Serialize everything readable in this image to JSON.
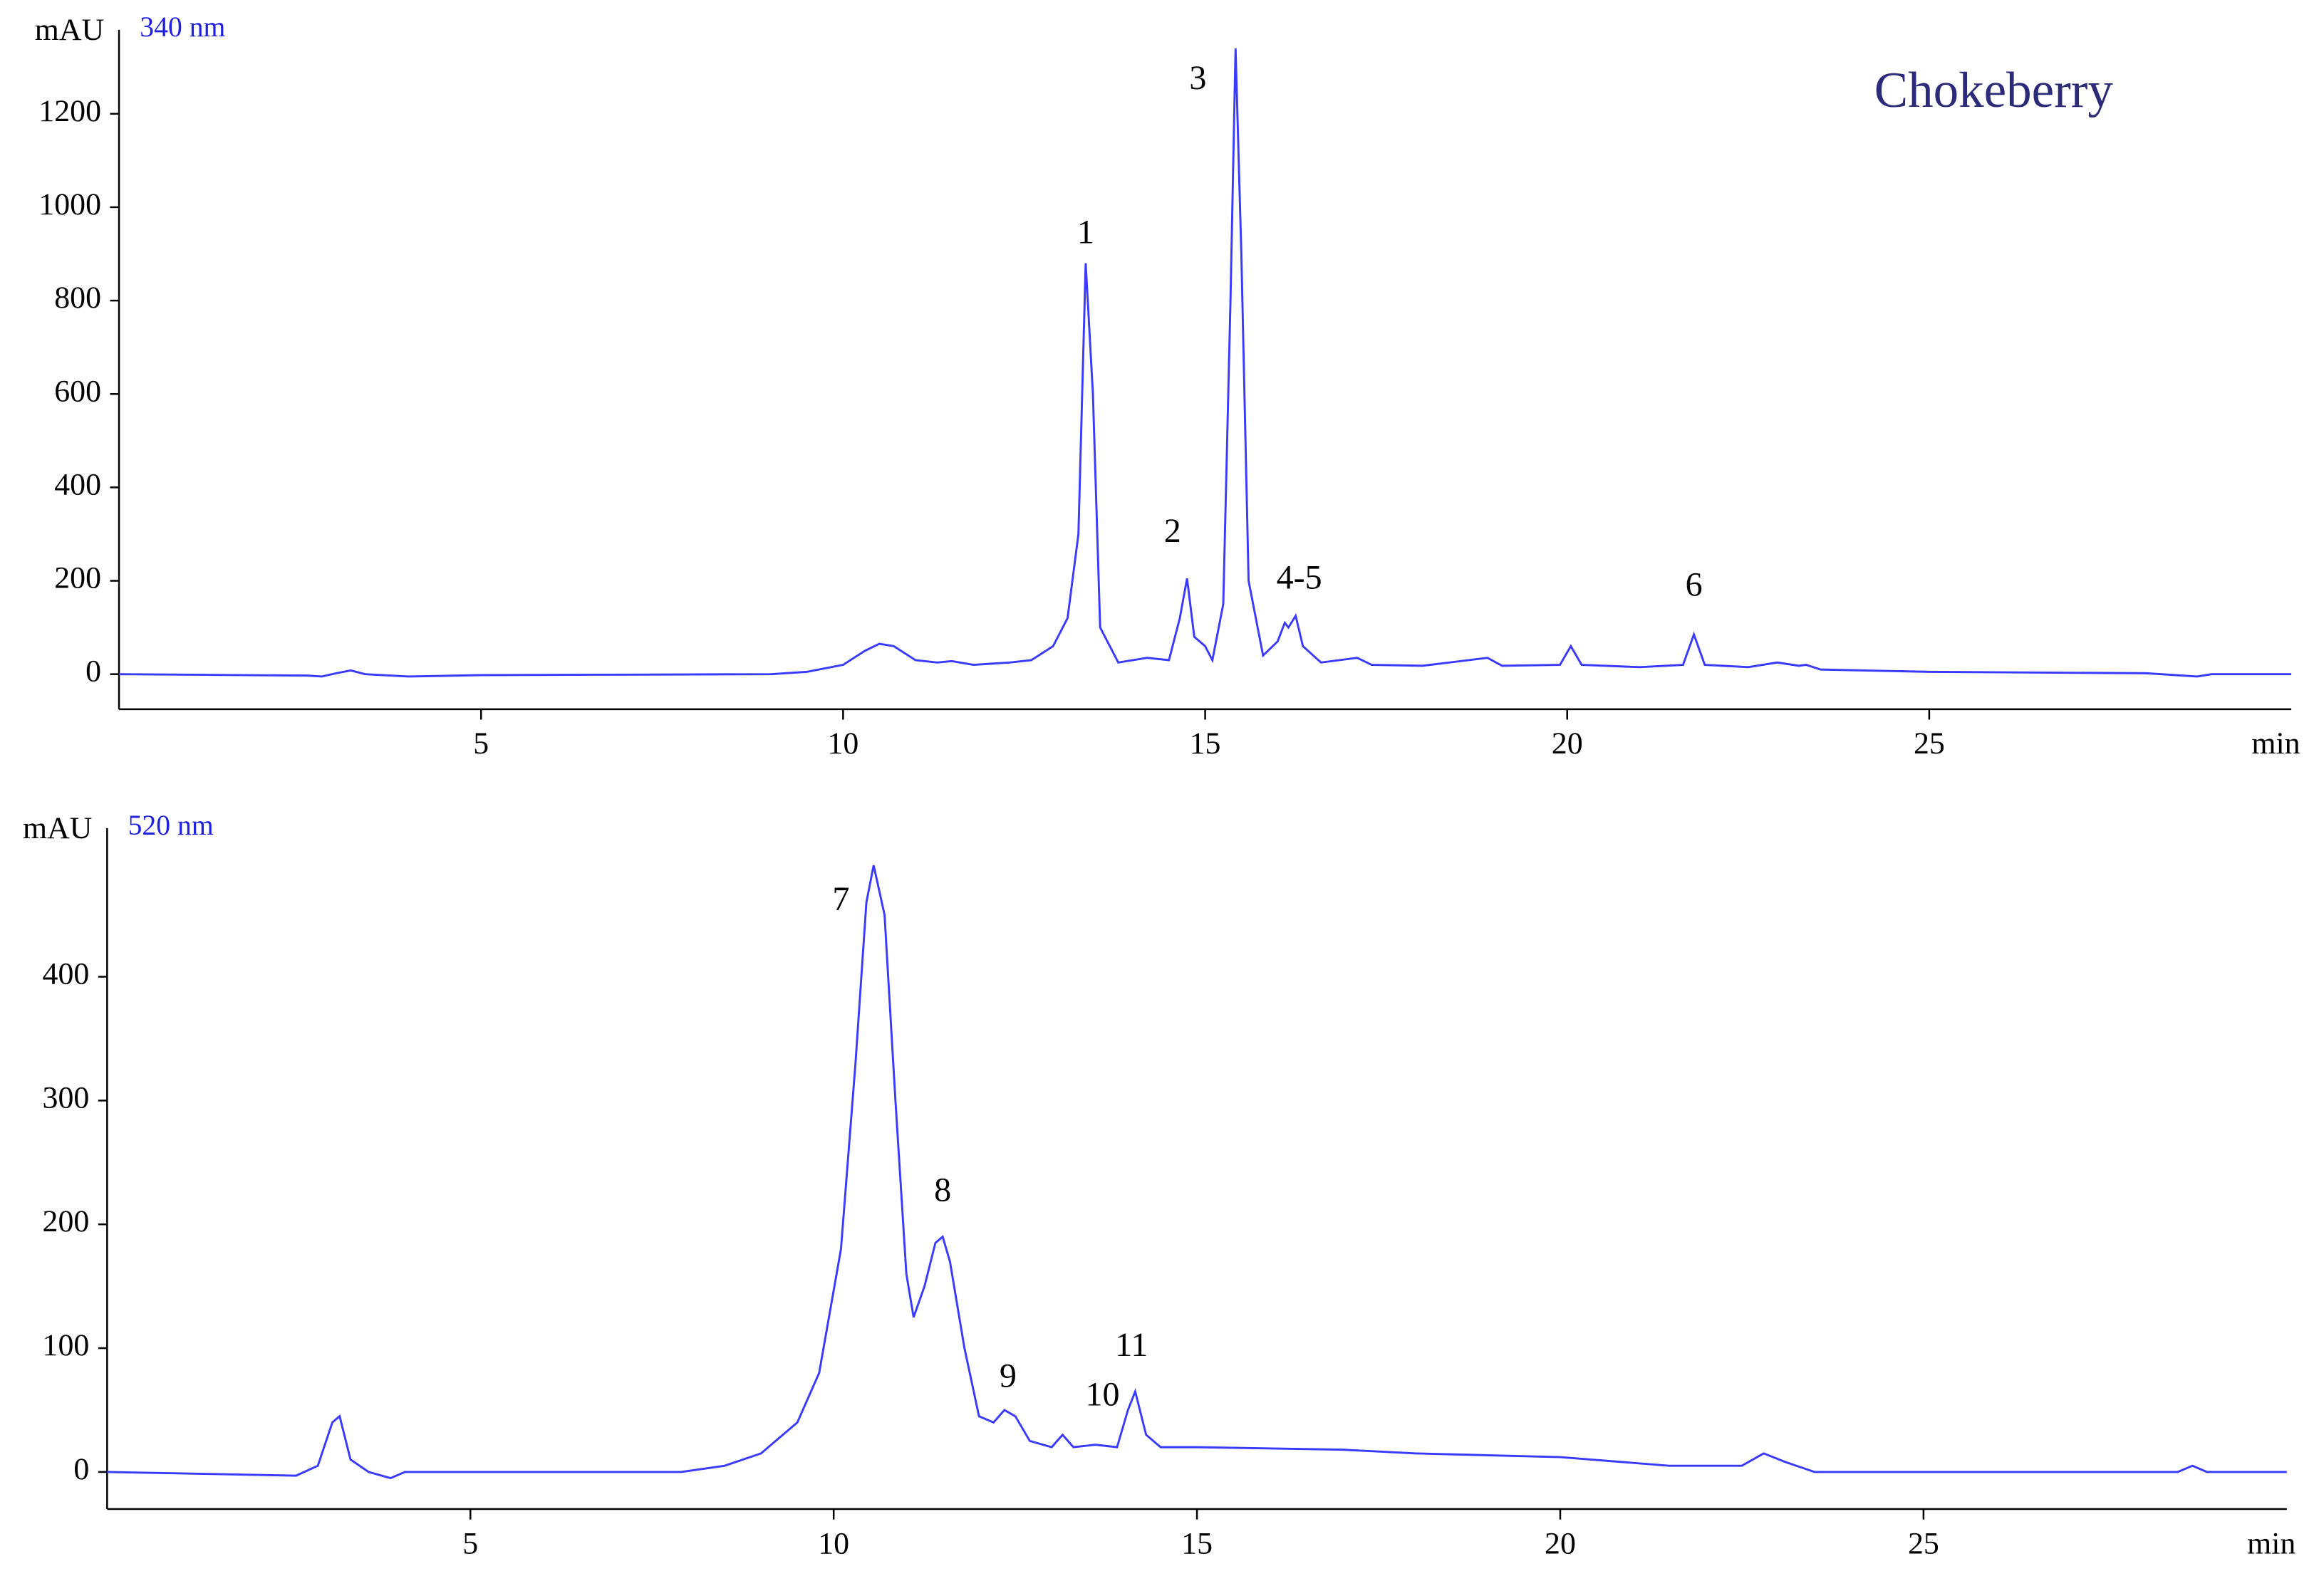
{
  "chart_data": [
    {
      "type": "line",
      "title": "Chokeberry",
      "subtitle": "340 nm",
      "y_label": "mAU",
      "x_label": "min",
      "color": "#3a3aff",
      "xlim": [
        0,
        30
      ],
      "xticks": [
        5,
        10,
        15,
        20,
        25
      ],
      "ylim": [
        -75,
        1380
      ],
      "yticks": [
        0,
        200,
        400,
        600,
        800,
        1000,
        1200
      ],
      "x": [
        0,
        2.6,
        2.8,
        3.0,
        3.2,
        3.4,
        4.0,
        5,
        9,
        9.5,
        10,
        10.3,
        10.5,
        10.7,
        11.0,
        11.3,
        11.5,
        11.8,
        12.3,
        12.6,
        12.9,
        13.1,
        13.25,
        13.35,
        13.45,
        13.55,
        13.8,
        14.2,
        14.5,
        14.65,
        14.75,
        14.85,
        15.0,
        15.1,
        15.25,
        15.35,
        15.42,
        15.5,
        15.6,
        15.8,
        16.0,
        16.1,
        16.15,
        16.25,
        16.35,
        16.6,
        17.1,
        17.3,
        18,
        18.9,
        19.1,
        19.9,
        20.05,
        20.2,
        21,
        21.6,
        21.75,
        21.9,
        22.5,
        22.9,
        23.2,
        23.3,
        23.5,
        25,
        28,
        28.7,
        28.9,
        30
      ],
      "values": [
        0,
        -3,
        -5,
        2,
        8,
        0,
        -5,
        -2,
        0,
        5,
        20,
        50,
        65,
        60,
        30,
        25,
        28,
        20,
        25,
        30,
        60,
        120,
        300,
        880,
        600,
        100,
        25,
        35,
        30,
        120,
        205,
        80,
        60,
        30,
        150,
        800,
        1340,
        900,
        200,
        40,
        70,
        110,
        100,
        125,
        60,
        25,
        35,
        20,
        18,
        35,
        18,
        20,
        60,
        20,
        15,
        20,
        85,
        20,
        15,
        25,
        18,
        20,
        10,
        5,
        2,
        -5,
        0,
        0
      ],
      "annotations": [
        {
          "text": "1",
          "x": 13.35,
          "y": 940
        },
        {
          "text": "2",
          "x": 14.55,
          "y": 300
        },
        {
          "text": "3",
          "x": 14.9,
          "y": 1270
        },
        {
          "text": "4-5",
          "x": 16.3,
          "y": 200
        },
        {
          "text": "6",
          "x": 21.75,
          "y": 185
        }
      ]
    },
    {
      "type": "line",
      "subtitle": "520 nm",
      "y_label": "mAU",
      "x_label": "min",
      "color": "#3a3aff",
      "xlim": [
        0,
        30
      ],
      "xticks": [
        5,
        10,
        15,
        20,
        25
      ],
      "ylim": [
        -30,
        520
      ],
      "yticks": [
        0,
        100,
        200,
        300,
        400
      ],
      "x": [
        0,
        2.6,
        2.9,
        3.1,
        3.2,
        3.35,
        3.6,
        3.9,
        4.1,
        6,
        7.9,
        8.5,
        9,
        9.5,
        9.8,
        10.1,
        10.3,
        10.45,
        10.55,
        10.7,
        10.85,
        11.0,
        11.1,
        11.25,
        11.4,
        11.5,
        11.6,
        11.8,
        12.0,
        12.2,
        12.35,
        12.5,
        12.7,
        13.0,
        13.15,
        13.3,
        13.6,
        13.9,
        14.05,
        14.15,
        14.3,
        14.5,
        15,
        17,
        18,
        20,
        21.5,
        22.5,
        22.8,
        23.1,
        23.5,
        28.5,
        28.7,
        28.9,
        30
      ],
      "values": [
        0,
        -3,
        5,
        40,
        45,
        10,
        0,
        -5,
        0,
        0,
        0,
        5,
        15,
        40,
        80,
        180,
        330,
        460,
        490,
        450,
        300,
        160,
        125,
        150,
        185,
        190,
        170,
        100,
        45,
        40,
        50,
        45,
        25,
        20,
        30,
        20,
        22,
        20,
        50,
        65,
        30,
        20,
        20,
        18,
        15,
        12,
        5,
        5,
        15,
        8,
        0,
        0,
        5,
        0,
        0
      ],
      "annotations": [
        {
          "text": "7",
          "x": 10.1,
          "y": 460
        },
        {
          "text": "8",
          "x": 11.5,
          "y": 225
        },
        {
          "text": "9",
          "x": 12.4,
          "y": 75
        },
        {
          "text": "10",
          "x": 13.7,
          "y": 60
        },
        {
          "text": "11",
          "x": 14.1,
          "y": 100
        }
      ]
    }
  ]
}
